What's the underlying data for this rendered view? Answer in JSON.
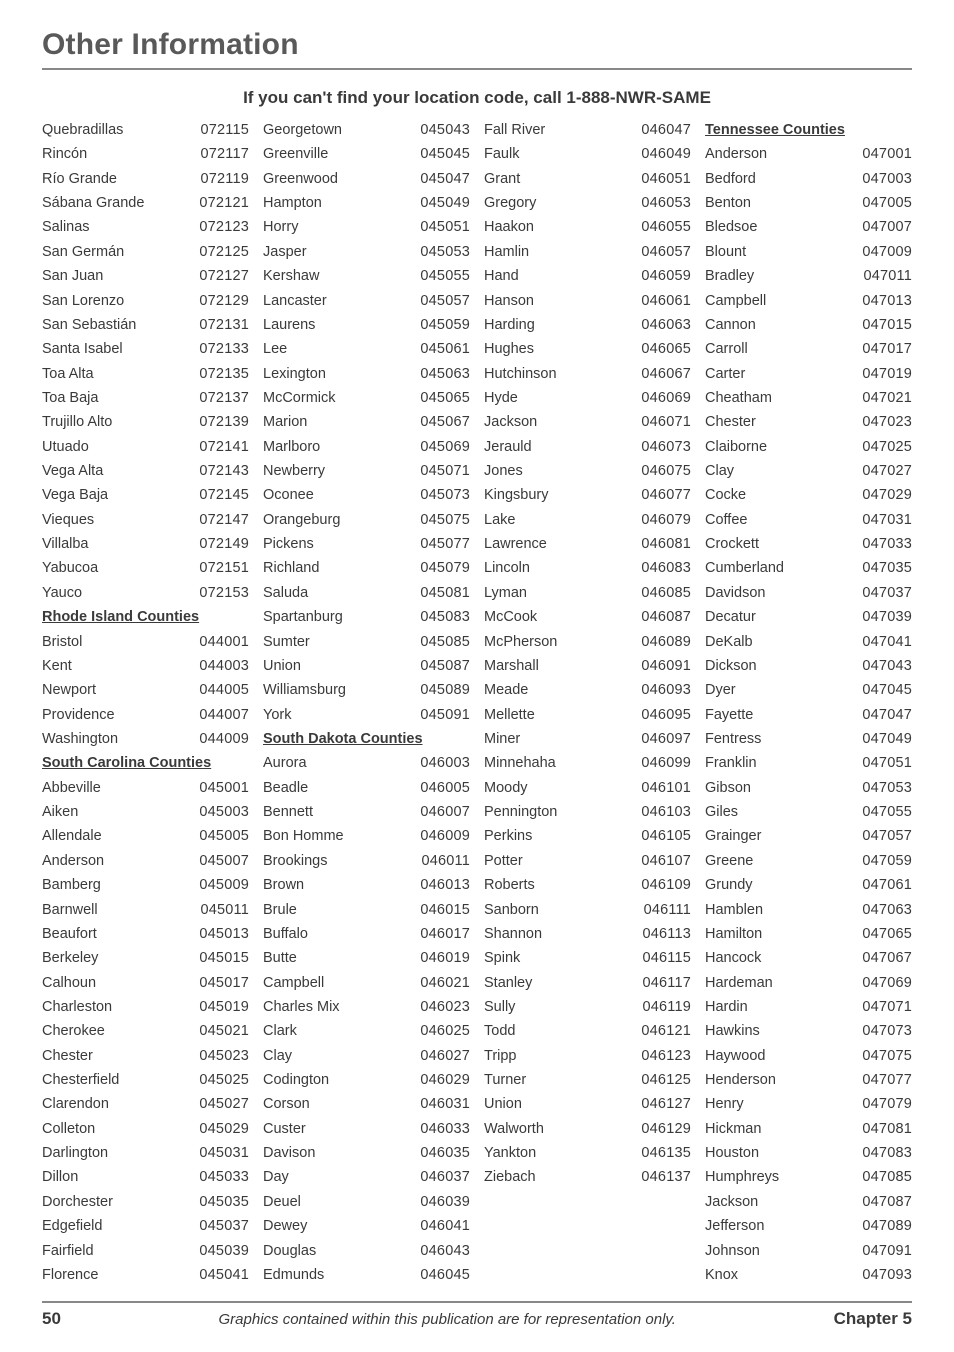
{
  "page_title": "Other Information",
  "subheading": "If you can't find your location code, call 1-888-NWR-SAME",
  "footer": {
    "page_number": "50",
    "caption": "Graphics contained within this publication are for representation only.",
    "chapter": "Chapter 5"
  },
  "columns": [
    [
      {
        "name": "Quebradillas",
        "code": "072115"
      },
      {
        "name": "Rincón",
        "code": "072117"
      },
      {
        "name": "Río Grande",
        "code": "072119"
      },
      {
        "name": "Sábana Grande",
        "code": "072121"
      },
      {
        "name": "Salinas",
        "code": "072123"
      },
      {
        "name": "San Germán",
        "code": "072125"
      },
      {
        "name": "San Juan",
        "code": "072127"
      },
      {
        "name": "San Lorenzo",
        "code": "072129"
      },
      {
        "name": "San Sebastián",
        "code": "072131"
      },
      {
        "name": "Santa Isabel",
        "code": "072133"
      },
      {
        "name": "Toa Alta",
        "code": "072135"
      },
      {
        "name": "Toa Baja",
        "code": "072137"
      },
      {
        "name": "Trujillo Alto",
        "code": "072139"
      },
      {
        "name": "Utuado",
        "code": "072141"
      },
      {
        "name": "Vega Alta",
        "code": "072143"
      },
      {
        "name": "Vega Baja",
        "code": "072145"
      },
      {
        "name": "Vieques",
        "code": "072147"
      },
      {
        "name": "Villalba",
        "code": "072149"
      },
      {
        "name": "Yabucoa",
        "code": "072151"
      },
      {
        "name": "Yauco",
        "code": "072153"
      },
      {
        "header": "Rhode Island Counties"
      },
      {
        "name": "Bristol",
        "code": "044001"
      },
      {
        "name": "Kent",
        "code": "044003"
      },
      {
        "name": "Newport",
        "code": "044005"
      },
      {
        "name": "Providence",
        "code": "044007"
      },
      {
        "name": "Washington",
        "code": "044009"
      },
      {
        "header": "South Carolina Counties"
      },
      {
        "name": "Abbeville",
        "code": "045001"
      },
      {
        "name": "Aiken",
        "code": "045003"
      },
      {
        "name": "Allendale",
        "code": "045005"
      },
      {
        "name": "Anderson",
        "code": "045007"
      },
      {
        "name": "Bamberg",
        "code": "045009"
      },
      {
        "name": "Barnwell",
        "code": "045011"
      },
      {
        "name": "Beaufort",
        "code": "045013"
      },
      {
        "name": "Berkeley",
        "code": "045015"
      },
      {
        "name": "Calhoun",
        "code": "045017"
      },
      {
        "name": "Charleston",
        "code": "045019"
      },
      {
        "name": "Cherokee",
        "code": "045021"
      },
      {
        "name": "Chester",
        "code": "045023"
      },
      {
        "name": "Chesterfield",
        "code": "045025"
      },
      {
        "name": "Clarendon",
        "code": "045027"
      },
      {
        "name": "Colleton",
        "code": "045029"
      },
      {
        "name": "Darlington",
        "code": "045031"
      },
      {
        "name": "Dillon",
        "code": "045033"
      },
      {
        "name": "Dorchester",
        "code": "045035"
      },
      {
        "name": "Edgefield",
        "code": "045037"
      },
      {
        "name": "Fairfield",
        "code": "045039"
      },
      {
        "name": "Florence",
        "code": "045041"
      }
    ],
    [
      {
        "name": "Georgetown",
        "code": "045043"
      },
      {
        "name": "Greenville",
        "code": "045045"
      },
      {
        "name": "Greenwood",
        "code": "045047"
      },
      {
        "name": "Hampton",
        "code": "045049"
      },
      {
        "name": "Horry",
        "code": "045051"
      },
      {
        "name": "Jasper",
        "code": "045053"
      },
      {
        "name": "Kershaw",
        "code": "045055"
      },
      {
        "name": "Lancaster",
        "code": "045057"
      },
      {
        "name": "Laurens",
        "code": "045059"
      },
      {
        "name": "Lee",
        "code": "045061"
      },
      {
        "name": "Lexington",
        "code": "045063"
      },
      {
        "name": "McCormick",
        "code": "045065"
      },
      {
        "name": "Marion",
        "code": "045067"
      },
      {
        "name": "Marlboro",
        "code": "045069"
      },
      {
        "name": "Newberry",
        "code": "045071"
      },
      {
        "name": "Oconee",
        "code": "045073"
      },
      {
        "name": "Orangeburg",
        "code": "045075"
      },
      {
        "name": "Pickens",
        "code": "045077"
      },
      {
        "name": "Richland",
        "code": "045079"
      },
      {
        "name": "Saluda",
        "code": "045081"
      },
      {
        "name": "Spartanburg",
        "code": "045083"
      },
      {
        "name": "Sumter",
        "code": "045085"
      },
      {
        "name": "Union",
        "code": "045087"
      },
      {
        "name": "Williamsburg",
        "code": "045089"
      },
      {
        "name": "York",
        "code": "045091"
      },
      {
        "header": "South Dakota Counties"
      },
      {
        "name": "Aurora",
        "code": "046003"
      },
      {
        "name": "Beadle",
        "code": "046005"
      },
      {
        "name": "Bennett",
        "code": "046007"
      },
      {
        "name": "Bon Homme",
        "code": "046009"
      },
      {
        "name": "Brookings",
        "code": "046011"
      },
      {
        "name": "Brown",
        "code": "046013"
      },
      {
        "name": "Brule",
        "code": "046015"
      },
      {
        "name": "Buffalo",
        "code": "046017"
      },
      {
        "name": "Butte",
        "code": "046019"
      },
      {
        "name": "Campbell",
        "code": "046021"
      },
      {
        "name": "Charles Mix",
        "code": "046023"
      },
      {
        "name": "Clark",
        "code": "046025"
      },
      {
        "name": "Clay",
        "code": "046027"
      },
      {
        "name": "Codington",
        "code": "046029"
      },
      {
        "name": "Corson",
        "code": "046031"
      },
      {
        "name": "Custer",
        "code": "046033"
      },
      {
        "name": "Davison",
        "code": "046035"
      },
      {
        "name": "Day",
        "code": "046037"
      },
      {
        "name": "Deuel",
        "code": "046039"
      },
      {
        "name": "Dewey",
        "code": "046041"
      },
      {
        "name": "Douglas",
        "code": "046043"
      },
      {
        "name": "Edmunds",
        "code": "046045"
      }
    ],
    [
      {
        "name": "Fall River",
        "code": "046047"
      },
      {
        "name": "Faulk",
        "code": "046049"
      },
      {
        "name": "Grant",
        "code": "046051"
      },
      {
        "name": "Gregory",
        "code": "046053"
      },
      {
        "name": "Haakon",
        "code": "046055"
      },
      {
        "name": "Hamlin",
        "code": "046057"
      },
      {
        "name": "Hand",
        "code": "046059"
      },
      {
        "name": "Hanson",
        "code": "046061"
      },
      {
        "name": "Harding",
        "code": "046063"
      },
      {
        "name": "Hughes",
        "code": "046065"
      },
      {
        "name": "Hutchinson",
        "code": "046067"
      },
      {
        "name": "Hyde",
        "code": "046069"
      },
      {
        "name": "Jackson",
        "code": "046071"
      },
      {
        "name": "Jerauld",
        "code": "046073"
      },
      {
        "name": "Jones",
        "code": "046075"
      },
      {
        "name": "Kingsbury",
        "code": "046077"
      },
      {
        "name": "Lake",
        "code": "046079"
      },
      {
        "name": "Lawrence",
        "code": "046081"
      },
      {
        "name": "Lincoln",
        "code": "046083"
      },
      {
        "name": "Lyman",
        "code": "046085"
      },
      {
        "name": "McCook",
        "code": "046087"
      },
      {
        "name": "McPherson",
        "code": "046089"
      },
      {
        "name": "Marshall",
        "code": "046091"
      },
      {
        "name": "Meade",
        "code": "046093"
      },
      {
        "name": "Mellette",
        "code": "046095"
      },
      {
        "name": "Miner",
        "code": "046097"
      },
      {
        "name": "Minnehaha",
        "code": "046099"
      },
      {
        "name": "Moody",
        "code": "046101"
      },
      {
        "name": "Pennington",
        "code": "046103"
      },
      {
        "name": "Perkins",
        "code": "046105"
      },
      {
        "name": "Potter",
        "code": "046107"
      },
      {
        "name": "Roberts",
        "code": "046109"
      },
      {
        "name": "Sanborn",
        "code": "046111"
      },
      {
        "name": "Shannon",
        "code": "046113"
      },
      {
        "name": "Spink",
        "code": "046115"
      },
      {
        "name": "Stanley",
        "code": "046117"
      },
      {
        "name": "Sully",
        "code": "046119"
      },
      {
        "name": "Todd",
        "code": "046121"
      },
      {
        "name": "Tripp",
        "code": "046123"
      },
      {
        "name": "Turner",
        "code": "046125"
      },
      {
        "name": "Union",
        "code": "046127"
      },
      {
        "name": "Walworth",
        "code": "046129"
      },
      {
        "name": "Yankton",
        "code": "046135"
      },
      {
        "name": "Ziebach",
        "code": "046137"
      }
    ],
    [
      {
        "header": "Tennessee Counties"
      },
      {
        "name": "Anderson",
        "code": "047001"
      },
      {
        "name": "Bedford",
        "code": "047003"
      },
      {
        "name": "Benton",
        "code": "047005"
      },
      {
        "name": "Bledsoe",
        "code": "047007"
      },
      {
        "name": "Blount",
        "code": "047009"
      },
      {
        "name": "Bradley",
        "code": "047011"
      },
      {
        "name": "Campbell",
        "code": "047013"
      },
      {
        "name": "Cannon",
        "code": "047015"
      },
      {
        "name": "Carroll",
        "code": "047017"
      },
      {
        "name": "Carter",
        "code": "047019"
      },
      {
        "name": "Cheatham",
        "code": "047021"
      },
      {
        "name": "Chester",
        "code": "047023"
      },
      {
        "name": "Claiborne",
        "code": "047025"
      },
      {
        "name": "Clay",
        "code": "047027"
      },
      {
        "name": "Cocke",
        "code": "047029"
      },
      {
        "name": "Coffee",
        "code": "047031"
      },
      {
        "name": "Crockett",
        "code": "047033"
      },
      {
        "name": "Cumberland",
        "code": "047035"
      },
      {
        "name": "Davidson",
        "code": "047037"
      },
      {
        "name": "Decatur",
        "code": "047039"
      },
      {
        "name": "DeKalb",
        "code": "047041"
      },
      {
        "name": "Dickson",
        "code": "047043"
      },
      {
        "name": "Dyer",
        "code": "047045"
      },
      {
        "name": "Fayette",
        "code": "047047"
      },
      {
        "name": "Fentress",
        "code": "047049"
      },
      {
        "name": "Franklin",
        "code": "047051"
      },
      {
        "name": "Gibson",
        "code": "047053"
      },
      {
        "name": "Giles",
        "code": "047055"
      },
      {
        "name": "Grainger",
        "code": "047057"
      },
      {
        "name": "Greene",
        "code": "047059"
      },
      {
        "name": "Grundy",
        "code": "047061"
      },
      {
        "name": "Hamblen",
        "code": "047063"
      },
      {
        "name": "Hamilton",
        "code": "047065"
      },
      {
        "name": "Hancock",
        "code": "047067"
      },
      {
        "name": "Hardeman",
        "code": "047069"
      },
      {
        "name": "Hardin",
        "code": "047071"
      },
      {
        "name": "Hawkins",
        "code": "047073"
      },
      {
        "name": "Haywood",
        "code": "047075"
      },
      {
        "name": "Henderson",
        "code": "047077"
      },
      {
        "name": "Henry",
        "code": "047079"
      },
      {
        "name": "Hickman",
        "code": "047081"
      },
      {
        "name": "Houston",
        "code": "047083"
      },
      {
        "name": "Humphreys",
        "code": "047085"
      },
      {
        "name": "Jackson",
        "code": "047087"
      },
      {
        "name": "Jefferson",
        "code": "047089"
      },
      {
        "name": "Johnson",
        "code": "047091"
      },
      {
        "name": "Knox",
        "code": "047093"
      }
    ]
  ]
}
